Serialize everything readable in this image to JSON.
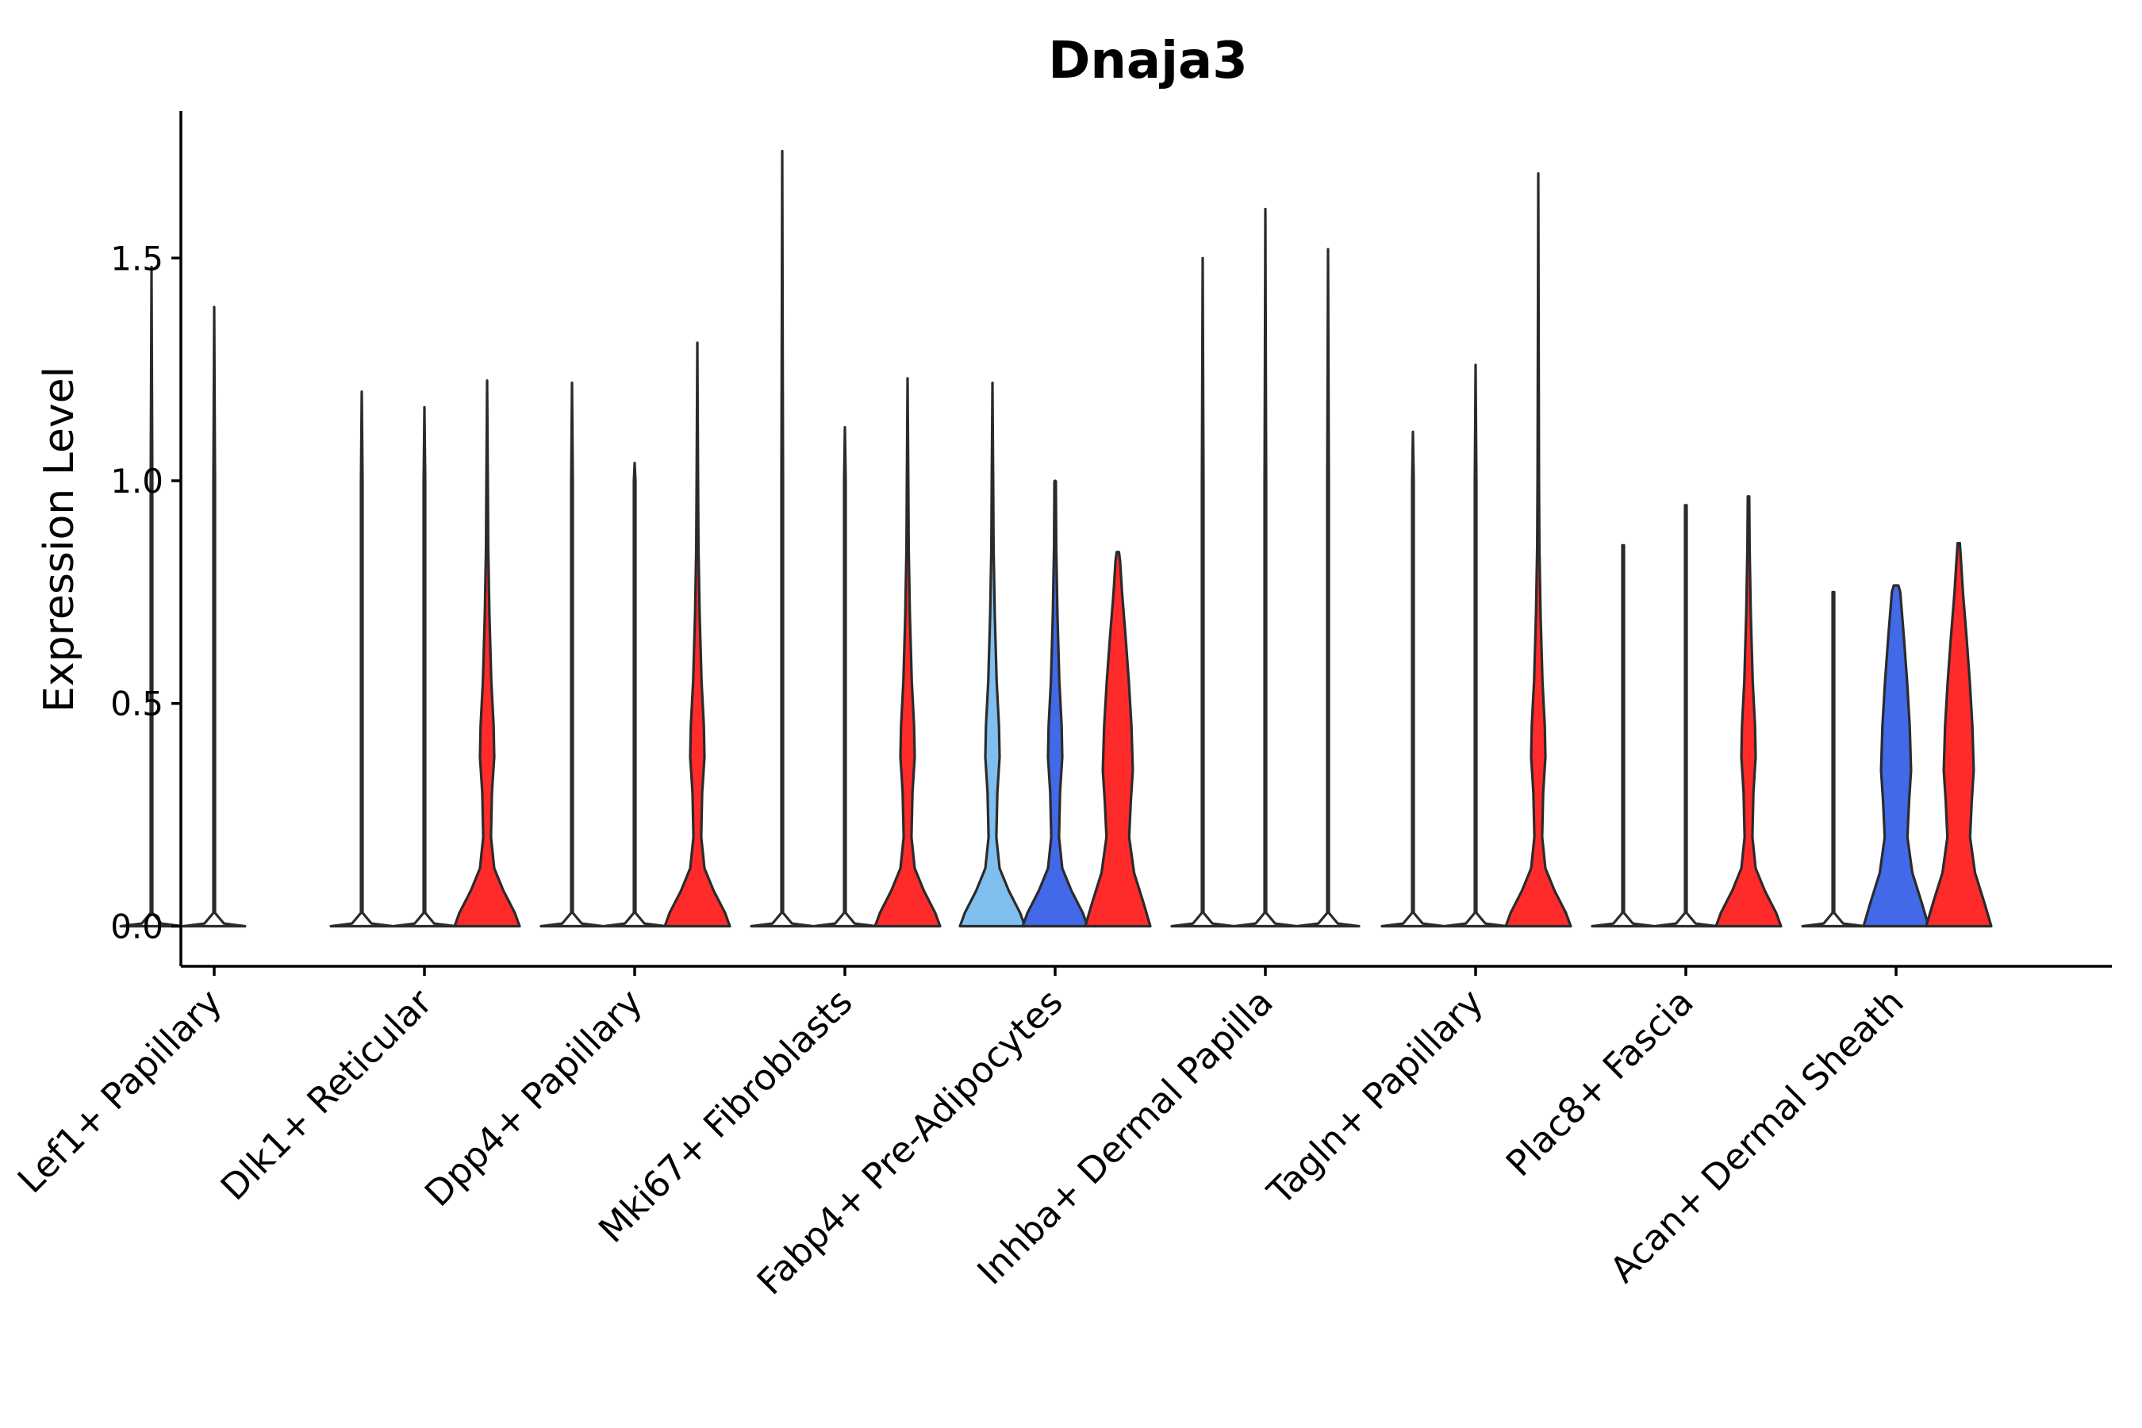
{
  "chart_data": {
    "type": "violin",
    "title": "Dnaja3",
    "xlabel": "",
    "ylabel": "Expression Level",
    "ylim": [
      -0.09,
      1.83
    ],
    "yticks": [
      0.0,
      0.5,
      1.0,
      1.5
    ],
    "ytick_labels": [
      "0.0",
      "0.5",
      "1.0",
      "1.5"
    ],
    "group_colors": {
      "none": "#ffffff",
      "light": "#7fbfef",
      "blue": "#4169e8",
      "red": "#ff2a2a"
    },
    "categories": [
      "Lef1+ Papillary",
      "Dlk1+ Reticular",
      "Dpp4+ Papillary",
      "Mki67+ Fibroblasts",
      "Fabp4+ Pre-Adipocytes",
      "Inhba+ Dermal Papilla",
      "Tagln+ Papillary",
      "Plac8+ Fascia",
      "Acan+ Dermal Sheath"
    ],
    "violins": [
      {
        "category": "Lef1+ Papillary",
        "sub": 0,
        "max": 1.48,
        "color": "none",
        "shape": "flat"
      },
      {
        "category": "Lef1+ Papillary",
        "sub": 1,
        "max": 1.39,
        "color": "none",
        "shape": "flat"
      },
      {
        "category": "Dlk1+ Reticular",
        "sub": 0,
        "max": 1.2,
        "color": "none",
        "shape": "flat"
      },
      {
        "category": "Dlk1+ Reticular",
        "sub": 1,
        "max": 1.165,
        "color": "none",
        "shape": "flat"
      },
      {
        "category": "Dlk1+ Reticular",
        "sub": 2,
        "max": 1.225,
        "color": "red",
        "shape": "dense"
      },
      {
        "category": "Dpp4+ Papillary",
        "sub": 0,
        "max": 1.22,
        "color": "none",
        "shape": "flat"
      },
      {
        "category": "Dpp4+ Papillary",
        "sub": 1,
        "max": 1.04,
        "color": "none",
        "shape": "flat"
      },
      {
        "category": "Dpp4+ Papillary",
        "sub": 2,
        "max": 1.31,
        "color": "red",
        "shape": "dense"
      },
      {
        "category": "Mki67+ Fibroblasts",
        "sub": 0,
        "max": 1.74,
        "color": "none",
        "shape": "flat"
      },
      {
        "category": "Mki67+ Fibroblasts",
        "sub": 1,
        "max": 1.12,
        "color": "none",
        "shape": "flat"
      },
      {
        "category": "Mki67+ Fibroblasts",
        "sub": 2,
        "max": 1.23,
        "color": "red",
        "shape": "dense"
      },
      {
        "category": "Fabp4+ Pre-Adipocytes",
        "sub": 0,
        "max": 1.22,
        "color": "light",
        "shape": "dense"
      },
      {
        "category": "Fabp4+ Pre-Adipocytes",
        "sub": 1,
        "max": 1.0,
        "color": "blue",
        "shape": "dense"
      },
      {
        "category": "Fabp4+ Pre-Adipocytes",
        "sub": 2,
        "max": 0.84,
        "color": "red",
        "shape": "wide"
      },
      {
        "category": "Inhba+ Dermal Papilla",
        "sub": 0,
        "max": 1.5,
        "color": "none",
        "shape": "flat"
      },
      {
        "category": "Inhba+ Dermal Papilla",
        "sub": 1,
        "max": 1.61,
        "color": "none",
        "shape": "flat"
      },
      {
        "category": "Inhba+ Dermal Papilla",
        "sub": 2,
        "max": 1.52,
        "color": "none",
        "shape": "flat"
      },
      {
        "category": "Tagln+ Papillary",
        "sub": 0,
        "max": 1.11,
        "color": "none",
        "shape": "flat"
      },
      {
        "category": "Tagln+ Papillary",
        "sub": 1,
        "max": 1.26,
        "color": "none",
        "shape": "flat"
      },
      {
        "category": "Tagln+ Papillary",
        "sub": 2,
        "max": 1.69,
        "color": "red",
        "shape": "dense"
      },
      {
        "category": "Plac8+ Fascia",
        "sub": 0,
        "max": 0.855,
        "color": "none",
        "shape": "flat"
      },
      {
        "category": "Plac8+ Fascia",
        "sub": 1,
        "max": 0.945,
        "color": "none",
        "shape": "flat"
      },
      {
        "category": "Plac8+ Fascia",
        "sub": 2,
        "max": 0.965,
        "color": "red",
        "shape": "dense"
      },
      {
        "category": "Acan+ Dermal Sheath",
        "sub": 0,
        "max": 0.75,
        "color": "none",
        "shape": "flat"
      },
      {
        "category": "Acan+ Dermal Sheath",
        "sub": 1,
        "max": 0.765,
        "color": "blue",
        "shape": "wide"
      },
      {
        "category": "Acan+ Dermal Sheath",
        "sub": 2,
        "max": 0.86,
        "color": "red",
        "shape": "wide"
      }
    ]
  }
}
